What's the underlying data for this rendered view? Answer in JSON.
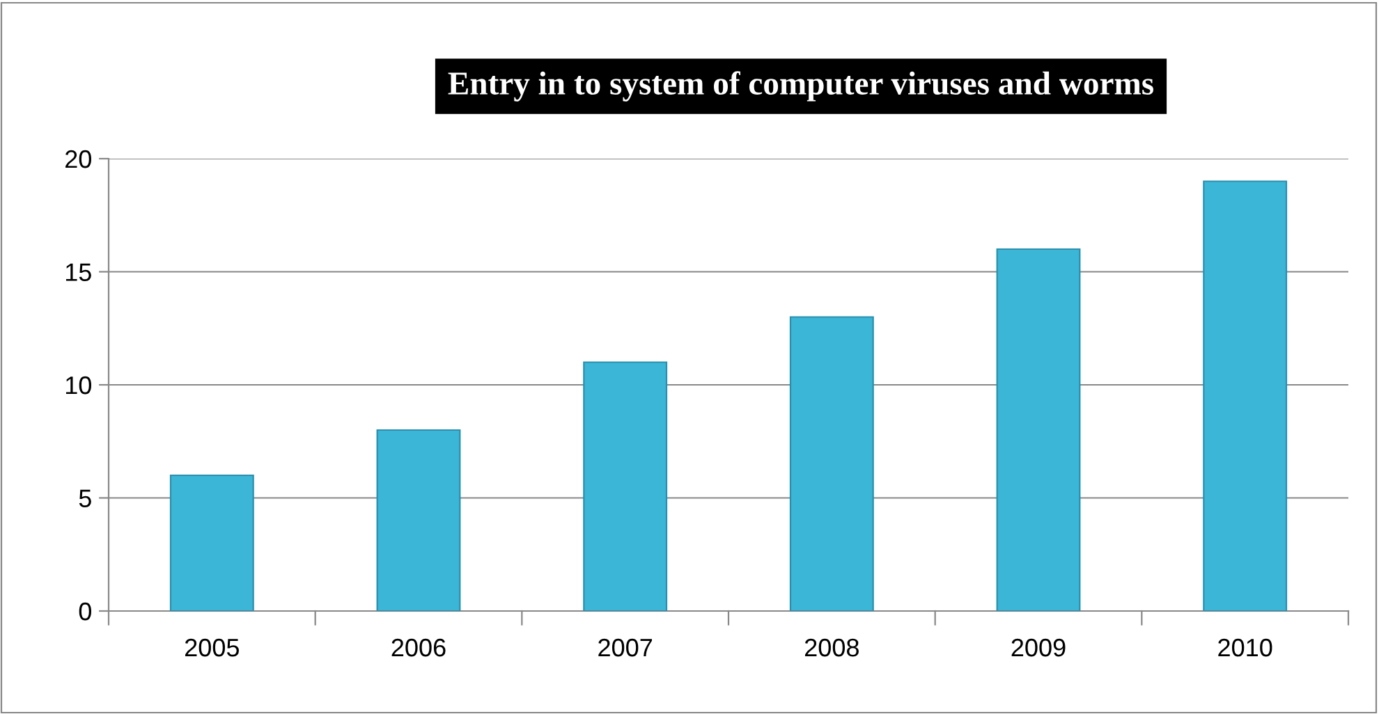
{
  "chart_data": {
    "type": "bar",
    "title": "Entry in to system of computer viruses and worms",
    "categories": [
      "2005",
      "2006",
      "2007",
      "2008",
      "2009",
      "2010"
    ],
    "values": [
      6,
      8,
      11,
      13,
      16,
      19
    ],
    "color": "#3bb6d6",
    "ylim": [
      0,
      20
    ],
    "yticks": [
      0,
      5,
      10,
      15,
      20
    ],
    "grid": "y"
  }
}
